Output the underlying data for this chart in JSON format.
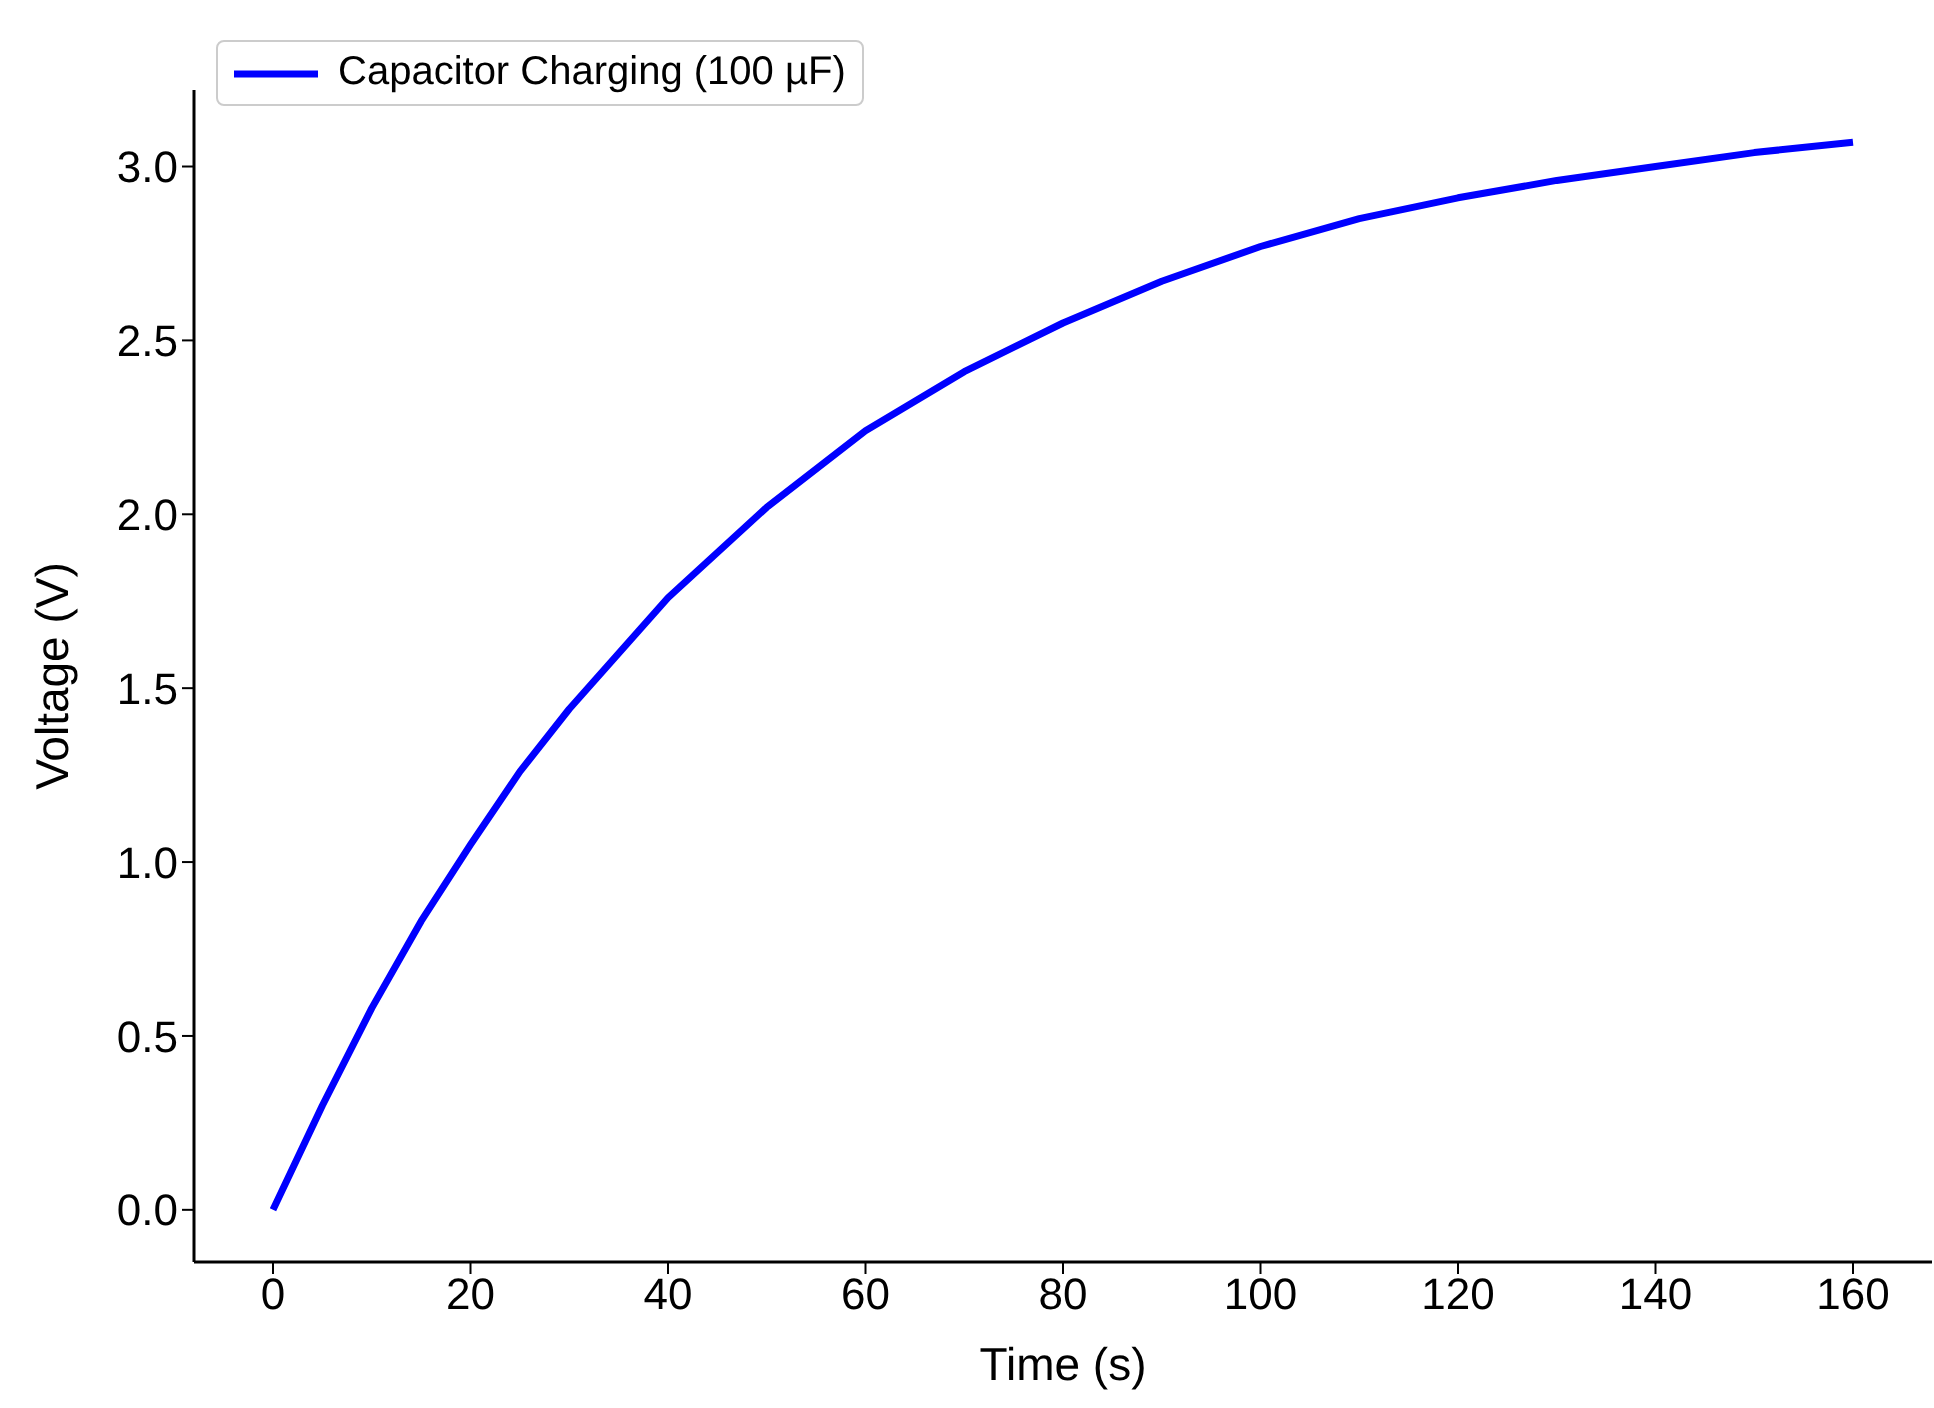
{
  "chart_data": {
    "type": "line",
    "xlabel": "Time (s)",
    "ylabel": "Voltage (V)",
    "x": [
      0,
      5,
      10,
      15,
      20,
      25,
      30,
      40,
      50,
      60,
      70,
      80,
      90,
      100,
      110,
      120,
      130,
      140,
      150,
      160
    ],
    "series": [
      {
        "name": "Capacitor Charging (100 µF)",
        "color": "#0000ff",
        "values": [
          0,
          0.3,
          0.58,
          0.83,
          1.05,
          1.26,
          1.44,
          1.76,
          2.02,
          2.24,
          2.41,
          2.55,
          2.67,
          2.77,
          2.85,
          2.91,
          2.96,
          3.0,
          3.04,
          3.07
        ]
      }
    ],
    "xlim": [
      -8,
      168
    ],
    "xticks": [
      0,
      20,
      40,
      60,
      80,
      100,
      120,
      140,
      160
    ],
    "ylim": [
      -0.15,
      3.22
    ],
    "yticks": [
      {
        "value": 0,
        "label": "0.0"
      },
      0.5,
      {
        "value": 1,
        "label": "1.0"
      },
      1.5,
      {
        "value": 2,
        "label": "2.0"
      },
      2.5,
      {
        "value": 3,
        "label": "3.0"
      }
    ],
    "grid": false,
    "legend": "top left",
    "marker": "none",
    "line_style": "solid"
  }
}
